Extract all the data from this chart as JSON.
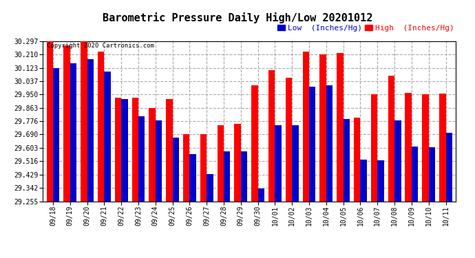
{
  "title": "Barometric Pressure Daily High/Low 20201012",
  "copyright": "Copyright 2020 Cartronics.com",
  "legend_low": "Low  (Inches/Hg)",
  "legend_high": "High  (Inches/Hg)",
  "dates": [
    "09/18",
    "09/19",
    "09/20",
    "09/21",
    "09/22",
    "09/23",
    "09/24",
    "09/25",
    "09/26",
    "09/27",
    "09/28",
    "09/29",
    "09/30",
    "10/01",
    "10/02",
    "10/03",
    "10/04",
    "10/05",
    "10/06",
    "10/07",
    "10/08",
    "10/09",
    "10/10",
    "10/11"
  ],
  "high_values": [
    30.297,
    30.27,
    30.297,
    30.23,
    29.93,
    29.93,
    29.863,
    29.92,
    29.69,
    29.69,
    29.75,
    29.76,
    30.01,
    30.11,
    30.06,
    30.23,
    30.21,
    30.22,
    29.8,
    29.95,
    30.075,
    29.96,
    29.95,
    29.955
  ],
  "low_values": [
    30.123,
    30.155,
    30.18,
    30.1,
    29.92,
    29.81,
    29.78,
    29.67,
    29.56,
    29.43,
    29.58,
    29.58,
    29.34,
    29.75,
    29.75,
    30.0,
    30.01,
    29.79,
    29.525,
    29.52,
    29.78,
    29.61,
    29.605,
    29.7
  ],
  "ymin": 29.255,
  "ymax": 30.297,
  "yticks": [
    29.255,
    29.342,
    29.429,
    29.516,
    29.603,
    29.69,
    29.776,
    29.863,
    29.95,
    30.037,
    30.123,
    30.21,
    30.297
  ],
  "bar_width": 0.38,
  "high_color": "#ff0000",
  "low_color": "#0000cc",
  "bg_color": "#ffffff",
  "grid_color": "#aaaaaa",
  "title_fontsize": 11,
  "tick_fontsize": 7,
  "legend_fontsize": 8
}
